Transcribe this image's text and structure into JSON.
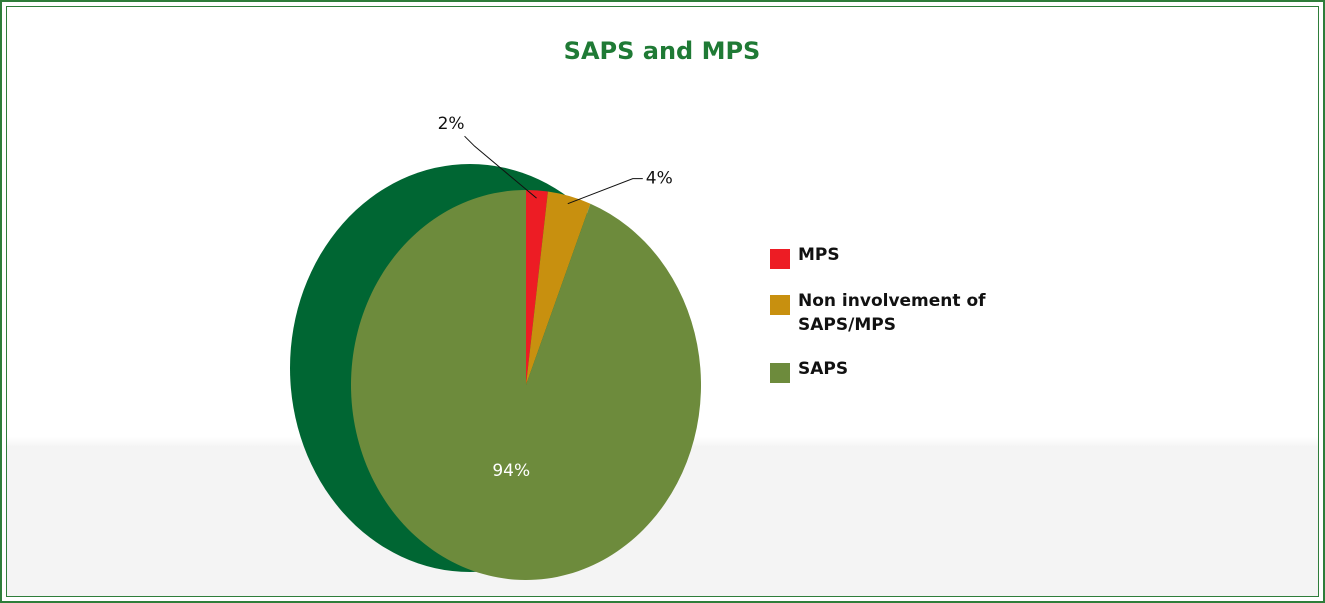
{
  "chart_data": {
    "type": "pie",
    "title": "SAPS and MPS",
    "categories": [
      "MPS",
      "Non involvement of SAPS/MPS",
      "SAPS"
    ],
    "values": [
      2,
      4,
      94
    ],
    "value_labels": [
      "2%",
      "4%",
      "94%"
    ],
    "colors": [
      "#ed1c24",
      "#c8900f",
      "#6d8b3c"
    ],
    "legend": "right"
  }
}
